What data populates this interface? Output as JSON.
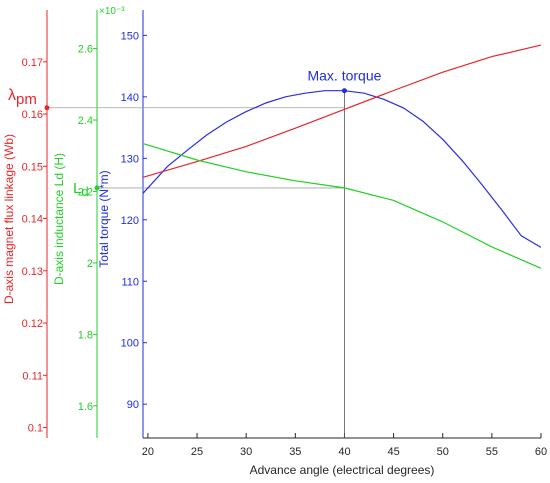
{
  "chart_data": {
    "type": "line",
    "xlabel": "Advance angle (electrical degrees)",
    "xlim": [
      19.5,
      60
    ],
    "x_ticks": [
      20,
      25,
      30,
      35,
      40,
      45,
      50,
      55,
      60
    ],
    "axes": [
      {
        "id": "flux",
        "label": "D-axis magnet flux linkage (Wb)",
        "color": "#e8262b",
        "ylim": [
          0.098,
          0.178
        ],
        "ticks": [
          0.1,
          0.11,
          0.12,
          0.13,
          0.14,
          0.15,
          0.16,
          0.17
        ],
        "tick_labels": [
          "0.1",
          "0.11",
          "0.12",
          "0.13",
          "0.14",
          "0.15",
          "0.16",
          "0.17"
        ]
      },
      {
        "id": "ld",
        "label": "D-axis inductance Ld (H)",
        "color": "#22d026",
        "ylim": [
          0.00151,
          0.00268
        ],
        "ticks": [
          0.0016,
          0.0018,
          0.002,
          0.0022,
          0.0024,
          0.0026
        ],
        "tick_labels": [
          "1.6",
          "1.8",
          "2",
          "2.2",
          "2.4",
          "2.6"
        ],
        "exponent_label": "×10⁻³"
      },
      {
        "id": "torque",
        "label": "Total torque (N*m)",
        "color": "#1f2de0",
        "ylim": [
          84.5,
          152.5
        ],
        "ticks": [
          90,
          100,
          110,
          120,
          130,
          140,
          150
        ],
        "tick_labels": [
          "90",
          "100",
          "110",
          "120",
          "130",
          "140",
          "150"
        ]
      }
    ],
    "series": [
      {
        "axis": "torque",
        "color": "#2b2ee0",
        "x": [
          19.5,
          22,
          24,
          26,
          28,
          30,
          32,
          34,
          36,
          38,
          40,
          42,
          44,
          46,
          48,
          50,
          52,
          54,
          56,
          58,
          60
        ],
        "y": [
          124.3,
          128.7,
          131.3,
          133.8,
          135.9,
          137.6,
          139.0,
          140.0,
          140.6,
          141.0,
          141.0,
          140.6,
          139.6,
          138.2,
          136.0,
          133.1,
          129.6,
          125.7,
          121.6,
          117.4,
          115.5
        ]
      },
      {
        "axis": "flux",
        "color": "#e8262b",
        "x": [
          19.5,
          25,
          30,
          35,
          40,
          45,
          50,
          55,
          60
        ],
        "y": [
          0.1479,
          0.1509,
          0.1538,
          0.1573,
          0.1609,
          0.1645,
          0.168,
          0.171,
          0.1732
        ]
      },
      {
        "axis": "ld",
        "color": "#22d026",
        "x": [
          19.5,
          25,
          30,
          35,
          40,
          45,
          50,
          55,
          60
        ],
        "y": [
          0.002334,
          0.002288,
          0.002255,
          0.00223,
          0.00221,
          0.002175,
          0.002115,
          0.002045,
          0.001985
        ]
      }
    ],
    "reference_lines": [
      {
        "axis": "flux",
        "y": 0.1612,
        "color": "#a0a0a0"
      },
      {
        "axis": "ld",
        "y": 0.00221,
        "color": "#a0a0a0"
      },
      {
        "axis": "torque",
        "x": 40,
        "y": 141.0,
        "color": "#555555"
      }
    ],
    "markers": [
      {
        "axis": "torque",
        "x": 40,
        "y": 141.0,
        "color": "#1f2de0"
      },
      {
        "axis": "flux",
        "y": 0.1612,
        "color": "#e8262b"
      },
      {
        "axis": "ld",
        "y": 0.00221,
        "color": "#22d026"
      }
    ],
    "annotations": [
      {
        "id": "max-torque",
        "text": "Max. torque",
        "color": "#1f2de0"
      },
      {
        "id": "lambda-pm",
        "text": "λ",
        "subscript": "pm",
        "color": "#e8262b"
      },
      {
        "id": "ld-marker",
        "text": "L",
        "subscript": "d",
        "color": "#22d026"
      }
    ],
    "grid": false
  }
}
